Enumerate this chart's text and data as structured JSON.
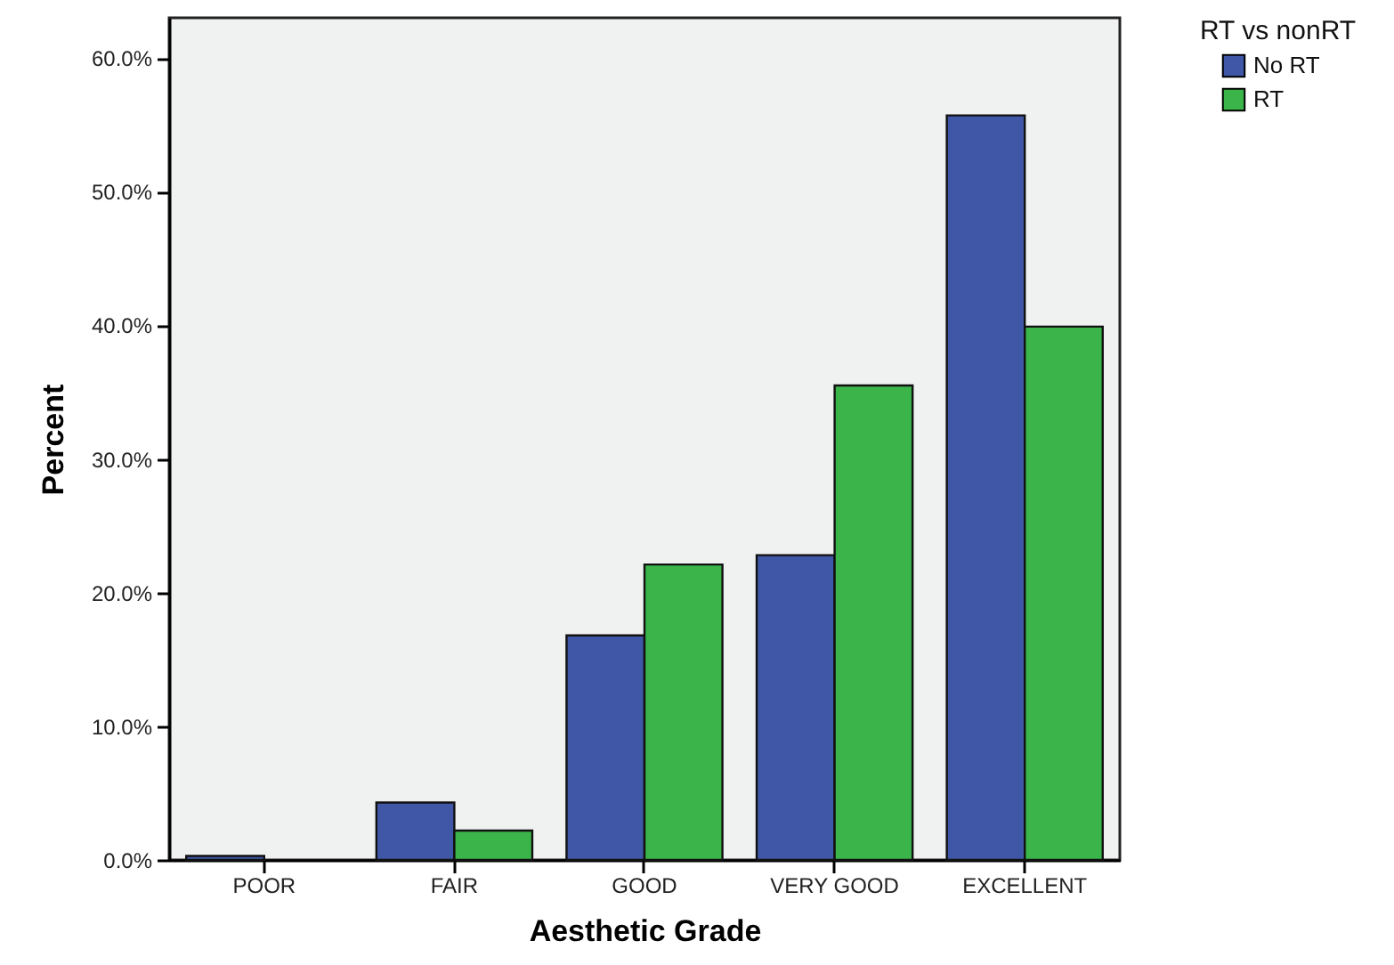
{
  "chart_data": {
    "type": "bar",
    "xlabel": "Aesthetic Grade",
    "ylabel": "Percent",
    "legend_title": "RT vs nonRT",
    "categories": [
      "POOR",
      "FAIR",
      "GOOD",
      "VERY GOOD",
      "EXCELLENT"
    ],
    "series": [
      {
        "name": "No RT",
        "color": "#3f57a6",
        "values": [
          0.3,
          4.3,
          16.8,
          22.8,
          55.7
        ]
      },
      {
        "name": "RT",
        "color": "#3bb54a",
        "values": [
          null,
          2.2,
          22.1,
          35.5,
          39.9
        ]
      }
    ],
    "ylim": [
      0,
      63
    ],
    "yticks": [
      {
        "value": 0,
        "label": "0.0%"
      },
      {
        "value": 10,
        "label": "10.0%"
      },
      {
        "value": 20,
        "label": "20.0%"
      },
      {
        "value": 30,
        "label": "30.0%"
      },
      {
        "value": 40,
        "label": "40.0%"
      },
      {
        "value": 50,
        "label": "50.0%"
      },
      {
        "value": 60,
        "label": "60.0%"
      }
    ],
    "grid": false,
    "legend": "top right"
  }
}
